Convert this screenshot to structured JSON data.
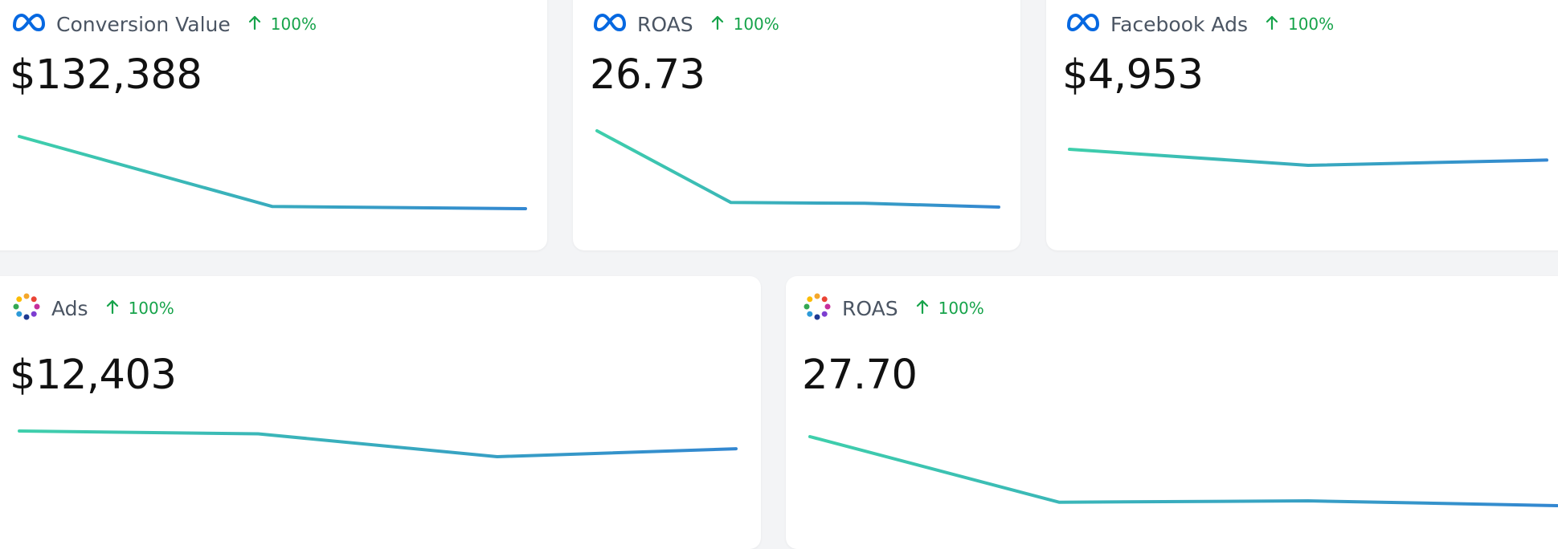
{
  "colors": {
    "line_start": "#3ecfab",
    "line_end": "#3387d1",
    "trend_up": "#16a34a",
    "meta_blue": "#0668e1"
  },
  "cards": [
    {
      "id": "conversion-value",
      "icon": "meta-icon",
      "title": "Conversion Value",
      "trend": "100%",
      "trend_direction": "up",
      "value": "$132,388",
      "series": [
        100,
        3,
        0
      ]
    },
    {
      "id": "roas-meta",
      "icon": "meta-icon",
      "title": "ROAS",
      "trend": "100%",
      "trend_direction": "up",
      "value": "26.73",
      "series": [
        100,
        6,
        5,
        0
      ]
    },
    {
      "id": "facebook-ads",
      "icon": "meta-icon",
      "title": "Facebook Ads",
      "trend": "100%",
      "trend_direction": "up",
      "value": "$4,953",
      "series": [
        100,
        0,
        33
      ]
    },
    {
      "id": "ads",
      "icon": "dots-logo-icon",
      "title": "Ads",
      "trend": "100%",
      "trend_direction": "up",
      "value": "$12,403",
      "series": [
        100,
        89,
        0,
        31
      ]
    },
    {
      "id": "roas-dots",
      "icon": "dots-logo-icon",
      "title": "ROAS",
      "trend": "100%",
      "trend_direction": "up",
      "value": "27.70",
      "series": [
        100,
        5,
        7,
        0
      ]
    }
  ]
}
